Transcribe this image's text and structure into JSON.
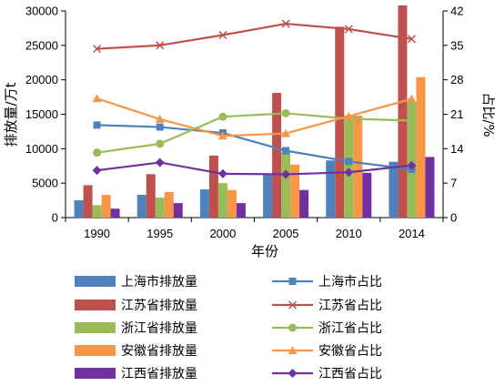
{
  "chart_data": {
    "type": "bar",
    "categories": [
      "1990",
      "1995",
      "2000",
      "2005",
      "2010",
      "2014"
    ],
    "xlabel": "年份",
    "ylabel_left": "排放量/万t",
    "ylabel_right": "占比/%",
    "ylim_left": [
      0,
      30000
    ],
    "ylim_right": [
      0,
      42
    ],
    "yticks_left": [
      "0",
      "5000",
      "10000",
      "15000",
      "20000",
      "25000",
      "30000"
    ],
    "yticks_right": [
      "0",
      "7",
      "14",
      "21",
      "28",
      "35",
      "42"
    ],
    "grid": false,
    "legend_position": "bottom",
    "bar_series": [
      {
        "name": "上海市排放量",
        "color": "#4f81bd",
        "values": [
          2500,
          3300,
          4100,
          6200,
          8300,
          8100
        ]
      },
      {
        "name": "江苏省排放量",
        "color": "#c0504d",
        "values": [
          4700,
          6300,
          9000,
          18100,
          27700,
          30800
        ]
      },
      {
        "name": "浙江省排放量",
        "color": "#9bbb59",
        "values": [
          1800,
          2900,
          5000,
          9400,
          14800,
          16800
        ]
      },
      {
        "name": "安徽省排放量",
        "color": "#f79646",
        "values": [
          3300,
          3700,
          4000,
          7700,
          14800,
          20400
        ]
      },
      {
        "name": "江西省排放量",
        "color": "#7030a0",
        "values": [
          1300,
          2100,
          2100,
          4000,
          6500,
          8800
        ]
      }
    ],
    "line_series": [
      {
        "name": "上海市占比",
        "color": "#4f81bd",
        "marker": "square",
        "values": [
          18.8,
          18.4,
          17.2,
          13.6,
          11.4,
          9.8
        ]
      },
      {
        "name": "江苏省占比",
        "color": "#c0504d",
        "marker": "x",
        "values": [
          34.3,
          35.0,
          37.1,
          39.4,
          38.3,
          36.3
        ]
      },
      {
        "name": "浙江省占比",
        "color": "#9bbb59",
        "marker": "circle",
        "values": [
          13.2,
          15.0,
          20.5,
          21.2,
          20.1,
          19.7
        ]
      },
      {
        "name": "安徽省占比",
        "color": "#f79646",
        "marker": "triangle",
        "values": [
          24.2,
          20.0,
          16.6,
          17.1,
          20.6,
          24.1
        ]
      },
      {
        "name": "江西省占比",
        "color": "#7030a0",
        "marker": "diamond",
        "values": [
          9.6,
          11.2,
          8.9,
          8.8,
          9.2,
          10.6
        ]
      }
    ]
  }
}
